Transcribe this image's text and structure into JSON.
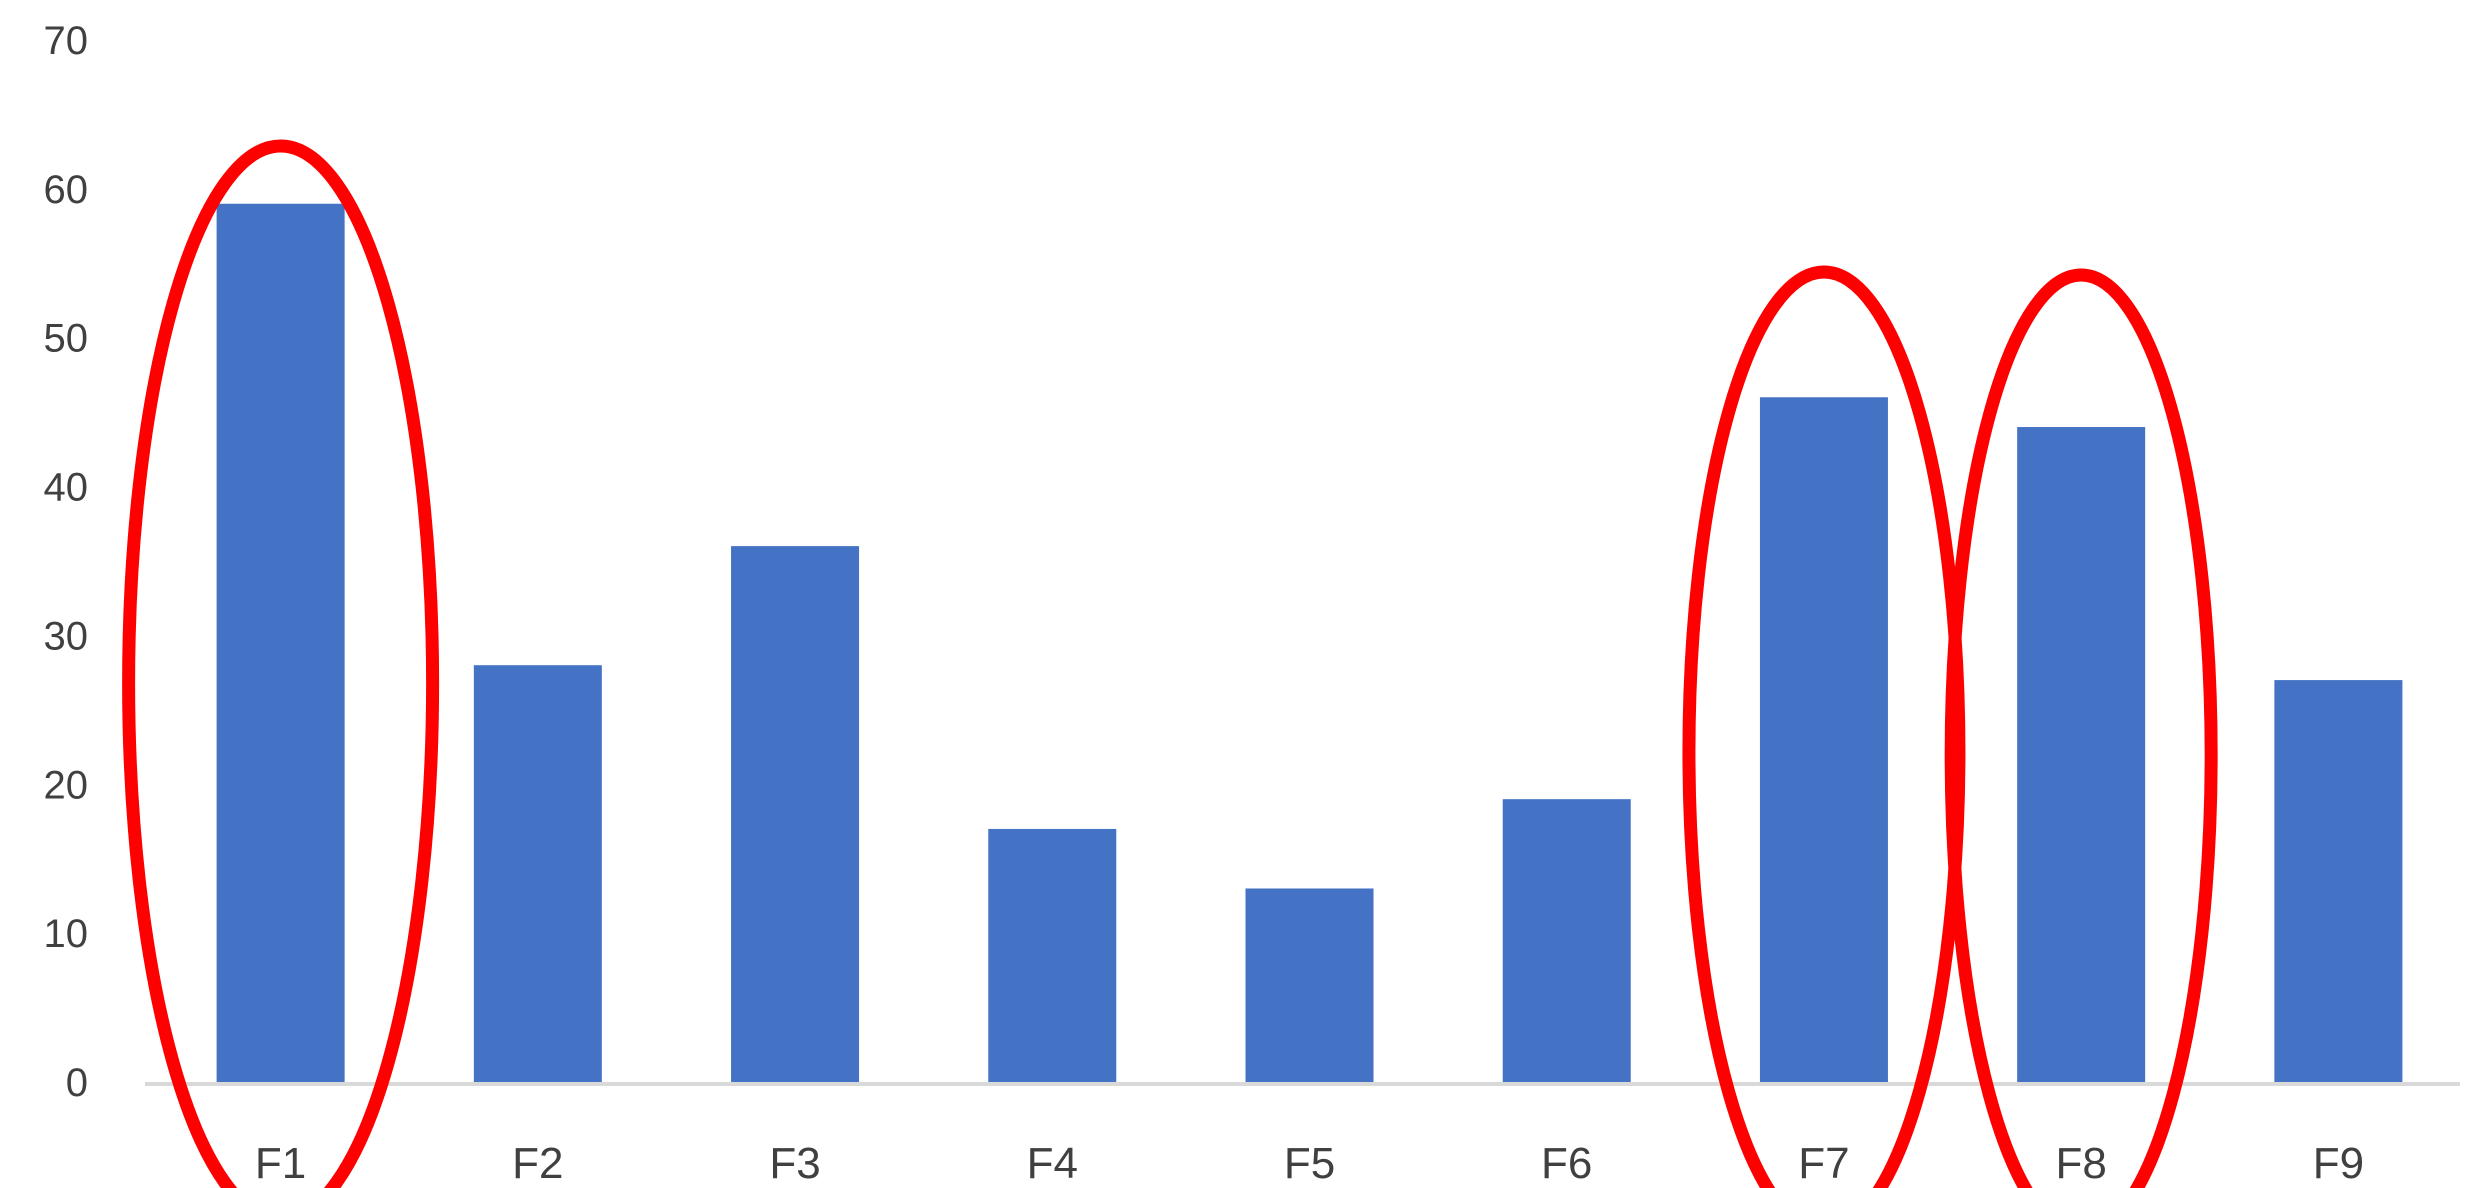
{
  "chart_data": {
    "type": "bar",
    "categories": [
      "F1",
      "F2",
      "F3",
      "F4",
      "F5",
      "F6",
      "F7",
      "F8",
      "F9"
    ],
    "values": [
      59,
      28,
      36,
      17,
      13,
      19,
      46,
      44,
      27
    ],
    "ylim": [
      0,
      70
    ],
    "yticks": [
      0,
      10,
      20,
      30,
      40,
      50,
      60,
      70
    ],
    "grid": false,
    "legend": "none",
    "bar_color": "#4472C4",
    "axis_color": "#D9D9D9",
    "annotations": {
      "type": "ellipse",
      "color": "#FF0000",
      "highlighted_categories": [
        "F1",
        "F7",
        "F8"
      ]
    }
  }
}
